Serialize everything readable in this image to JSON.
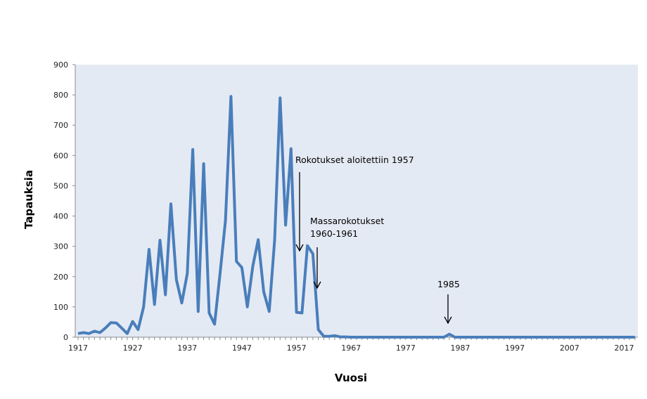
{
  "chart_data": {
    "type": "line",
    "title": "",
    "xlabel": "Vuosi",
    "ylabel": "Tapauksia",
    "xlim": [
      1917,
      2019
    ],
    "ylim": [
      0,
      900
    ],
    "y_ticks": [
      "0",
      "100",
      "200",
      "300",
      "400",
      "500",
      "600",
      "700",
      "800",
      "900"
    ],
    "x_ticks": [
      "1917",
      "1927",
      "1937",
      "1947",
      "1957",
      "1967",
      "1977",
      "1987",
      "1997",
      "2007",
      "2017"
    ],
    "grid": false,
    "legend": "none",
    "colors": {
      "line": "#4a7ebb",
      "plot_background": "#e4eaf4",
      "axis": "#8c8c8c"
    },
    "x_start_year": 1917,
    "values": [
      12,
      15,
      12,
      20,
      15,
      30,
      48,
      47,
      30,
      12,
      52,
      25,
      100,
      290,
      108,
      320,
      140,
      440,
      190,
      113,
      210,
      620,
      85,
      573,
      80,
      43,
      210,
      385,
      795,
      250,
      230,
      100,
      235,
      322,
      150,
      85,
      320,
      790,
      370,
      622,
      82,
      80,
      302,
      275,
      25,
      3,
      3,
      5,
      1,
      1,
      0,
      0,
      0,
      0,
      0,
      0,
      0,
      0,
      0,
      0,
      0,
      0,
      0,
      0,
      0,
      0,
      0,
      0,
      10,
      0,
      0,
      0,
      0,
      0,
      0,
      0,
      0,
      0,
      0,
      0,
      0,
      0,
      0,
      0,
      0,
      0,
      0,
      0,
      0,
      0,
      0,
      0,
      0,
      0,
      0,
      0,
      0,
      0,
      0,
      0,
      0,
      0,
      0
    ],
    "annotations": [
      {
        "lines": [
          "Rokotukset aloitettiin 1957"
        ],
        "year": 1957
      },
      {
        "lines": [
          "Massarokotukset",
          "1960-1961"
        ],
        "year": 1961
      },
      {
        "lines": [
          "1985"
        ],
        "year": 1985
      }
    ]
  }
}
